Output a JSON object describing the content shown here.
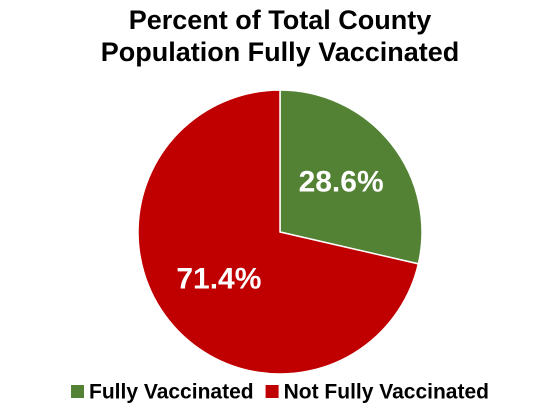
{
  "chart_data": {
    "type": "pie",
    "title": [
      "Percent of Total County",
      "Population Fully Vaccinated"
    ],
    "categories": [
      "Fully Vaccinated",
      "Not Fully Vaccinated"
    ],
    "values": [
      28.6,
      71.4
    ],
    "value_labels": [
      "28.6%",
      "71.4%"
    ],
    "colors": [
      "#548235",
      "#c00000"
    ],
    "legend": "bottom"
  }
}
